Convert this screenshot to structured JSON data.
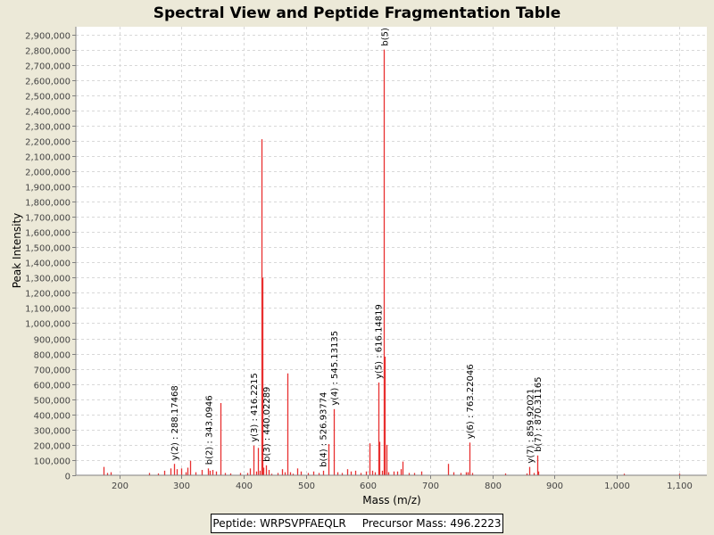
{
  "chart_data": {
    "type": "bar",
    "title": "Spectral View and Peptide Fragmentation Table",
    "xlabel": "Mass (m/z)",
    "ylabel": "Peak Intensity",
    "xlim": [
      130,
      1145
    ],
    "ylim": [
      0,
      2950000
    ],
    "x_ticks": [
      200,
      300,
      400,
      500,
      600,
      700,
      800,
      900,
      1000,
      1100
    ],
    "x_tick_labels": [
      "200",
      "300",
      "400",
      "500",
      "600",
      "700",
      "800",
      "900",
      "1,000",
      "1,100"
    ],
    "y_ticks": [
      0,
      100000,
      200000,
      300000,
      400000,
      500000,
      600000,
      700000,
      800000,
      900000,
      1000000,
      1100000,
      1200000,
      1300000,
      1400000,
      1500000,
      1600000,
      1700000,
      1800000,
      1900000,
      2000000,
      2100000,
      2200000,
      2300000,
      2400000,
      2500000,
      2600000,
      2700000,
      2800000,
      2900000
    ],
    "y_tick_labels": [
      "0",
      "100,000",
      "200,000",
      "300,000",
      "400,000",
      "500,000",
      "600,000",
      "700,000",
      "800,000",
      "900,000",
      "1,000,000",
      "1,100,000",
      "1,200,000",
      "1,300,000",
      "1,400,000",
      "1,500,000",
      "1,600,000",
      "1,700,000",
      "1,800,000",
      "1,900,000",
      "2,000,000",
      "2,100,000",
      "2,200,000",
      "2,300,000",
      "2,400,000",
      "2,500,000",
      "2,600,000",
      "2,700,000",
      "2,800,000",
      "2,900,000"
    ],
    "grid": true,
    "peaks": [
      {
        "x": 175,
        "y": 55000
      },
      {
        "x": 180,
        "y": 15000
      },
      {
        "x": 186,
        "y": 20000
      },
      {
        "x": 248,
        "y": 15000
      },
      {
        "x": 262,
        "y": 12000
      },
      {
        "x": 272,
        "y": 30000
      },
      {
        "x": 282,
        "y": 45000
      },
      {
        "x": 288,
        "y": 75000
      },
      {
        "x": 292,
        "y": 40000
      },
      {
        "x": 300,
        "y": 45000
      },
      {
        "x": 306,
        "y": 20000
      },
      {
        "x": 310,
        "y": 50000
      },
      {
        "x": 314,
        "y": 95000
      },
      {
        "x": 322,
        "y": 20000
      },
      {
        "x": 333,
        "y": 35000
      },
      {
        "x": 343,
        "y": 45000
      },
      {
        "x": 346,
        "y": 30000
      },
      {
        "x": 350,
        "y": 35000
      },
      {
        "x": 355,
        "y": 25000
      },
      {
        "x": 362,
        "y": 475000
      },
      {
        "x": 370,
        "y": 15000
      },
      {
        "x": 379,
        "y": 12000
      },
      {
        "x": 394,
        "y": 15000
      },
      {
        "x": 405,
        "y": 15000
      },
      {
        "x": 410,
        "y": 45000
      },
      {
        "x": 416,
        "y": 195000
      },
      {
        "x": 420,
        "y": 25000
      },
      {
        "x": 423,
        "y": 180000
      },
      {
        "x": 426,
        "y": 30000
      },
      {
        "x": 428,
        "y": 2210000
      },
      {
        "x": 430,
        "y": 1300000
      },
      {
        "x": 432,
        "y": 50000
      },
      {
        "x": 436,
        "y": 65000
      },
      {
        "x": 440,
        "y": 35000
      },
      {
        "x": 444,
        "y": 10000
      },
      {
        "x": 455,
        "y": 15000
      },
      {
        "x": 462,
        "y": 40000
      },
      {
        "x": 466,
        "y": 20000
      },
      {
        "x": 470,
        "y": 670000
      },
      {
        "x": 475,
        "y": 20000
      },
      {
        "x": 479,
        "y": 10000
      },
      {
        "x": 486,
        "y": 45000
      },
      {
        "x": 492,
        "y": 25000
      },
      {
        "x": 503,
        "y": 15000
      },
      {
        "x": 512,
        "y": 25000
      },
      {
        "x": 520,
        "y": 15000
      },
      {
        "x": 527,
        "y": 30000
      },
      {
        "x": 536,
        "y": 205000
      },
      {
        "x": 545,
        "y": 435000
      },
      {
        "x": 550,
        "y": 20000
      },
      {
        "x": 558,
        "y": 15000
      },
      {
        "x": 566,
        "y": 40000
      },
      {
        "x": 572,
        "y": 25000
      },
      {
        "x": 580,
        "y": 30000
      },
      {
        "x": 588,
        "y": 15000
      },
      {
        "x": 596,
        "y": 25000
      },
      {
        "x": 602,
        "y": 210000
      },
      {
        "x": 606,
        "y": 30000
      },
      {
        "x": 611,
        "y": 20000
      },
      {
        "x": 616,
        "y": 610000
      },
      {
        "x": 618,
        "y": 220000
      },
      {
        "x": 622,
        "y": 30000
      },
      {
        "x": 626,
        "y": 2800000
      },
      {
        "x": 627,
        "y": 780000
      },
      {
        "x": 629,
        "y": 200000
      },
      {
        "x": 633,
        "y": 20000
      },
      {
        "x": 641,
        "y": 25000
      },
      {
        "x": 647,
        "y": 25000
      },
      {
        "x": 652,
        "y": 40000
      },
      {
        "x": 656,
        "y": 90000
      },
      {
        "x": 665,
        "y": 15000
      },
      {
        "x": 674,
        "y": 15000
      },
      {
        "x": 686,
        "y": 25000
      },
      {
        "x": 728,
        "y": 75000
      },
      {
        "x": 737,
        "y": 20000
      },
      {
        "x": 749,
        "y": 15000
      },
      {
        "x": 757,
        "y": 20000
      },
      {
        "x": 760,
        "y": 20000
      },
      {
        "x": 763,
        "y": 215000
      },
      {
        "x": 768,
        "y": 15000
      },
      {
        "x": 820,
        "y": 12000
      },
      {
        "x": 855,
        "y": 12000
      },
      {
        "x": 860,
        "y": 55000
      },
      {
        "x": 867,
        "y": 15000
      },
      {
        "x": 872,
        "y": 130000
      },
      {
        "x": 873,
        "y": 25000
      },
      {
        "x": 1012,
        "y": 10000
      },
      {
        "x": 1100,
        "y": 10000
      }
    ],
    "annotations": [
      {
        "label": "y(2) : 288.17468",
        "x": 288,
        "y": 75000
      },
      {
        "label": "b(2) : 343.0946",
        "x": 343,
        "y": 45000
      },
      {
        "label": "y(3) : 416.2215",
        "x": 416,
        "y": 195000
      },
      {
        "label": "b(3) : 440.02289",
        "x": 436,
        "y": 65000
      },
      {
        "label": "b(4) : 526.93774",
        "x": 527,
        "y": 30000
      },
      {
        "label": "y(4) : 545.13135",
        "x": 545,
        "y": 435000
      },
      {
        "label": "y(5) : 616.14819",
        "x": 616,
        "y": 610000
      },
      {
        "label": "b(5)",
        "x": 626,
        "y": 2800000
      },
      {
        "label": "y(6) : 763.22046",
        "x": 763,
        "y": 215000
      },
      {
        "label": "y(7) : 859.92021",
        "x": 860,
        "y": 55000
      },
      {
        "label": "b(7) : 870.31165",
        "x": 872,
        "y": 130000
      }
    ],
    "peak_color": "#E83030",
    "label_color": "#000000"
  },
  "footer": {
    "peptide": "Peptide: WRPSVPFAEQLR",
    "precursor": "Precursor Mass: 496.2223"
  }
}
